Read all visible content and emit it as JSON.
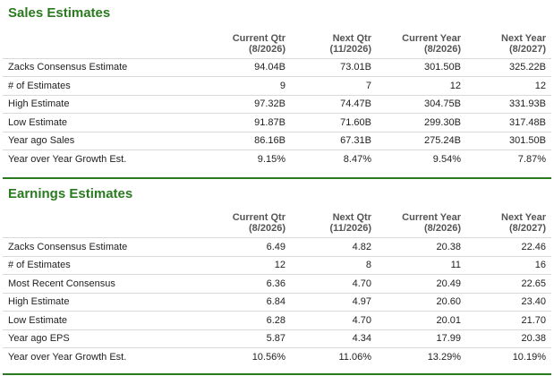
{
  "sales": {
    "title": "Sales Estimates",
    "columns": [
      {
        "line1": "Current Qtr",
        "line2": "(8/2026)"
      },
      {
        "line1": "Next Qtr",
        "line2": "(11/2026)"
      },
      {
        "line1": "Current Year",
        "line2": "(8/2026)"
      },
      {
        "line1": "Next Year",
        "line2": "(8/2027)"
      }
    ],
    "rows": [
      {
        "label": "Zacks Consensus Estimate",
        "v": [
          "94.04B",
          "73.01B",
          "301.50B",
          "325.22B"
        ]
      },
      {
        "label": "# of Estimates",
        "v": [
          "9",
          "7",
          "12",
          "12"
        ]
      },
      {
        "label": "High Estimate",
        "v": [
          "97.32B",
          "74.47B",
          "304.75B",
          "331.93B"
        ]
      },
      {
        "label": "Low Estimate",
        "v": [
          "91.87B",
          "71.60B",
          "299.30B",
          "317.48B"
        ]
      },
      {
        "label": "Year ago Sales",
        "v": [
          "86.16B",
          "67.31B",
          "275.24B",
          "301.50B"
        ]
      },
      {
        "label": "Year over Year Growth Est.",
        "v": [
          "9.15%",
          "8.47%",
          "9.54%",
          "7.87%"
        ]
      }
    ]
  },
  "earnings": {
    "title": "Earnings Estimates",
    "columns": [
      {
        "line1": "Current Qtr",
        "line2": "(8/2026)"
      },
      {
        "line1": "Next Qtr",
        "line2": "(11/2026)"
      },
      {
        "line1": "Current Year",
        "line2": "(8/2026)"
      },
      {
        "line1": "Next Year",
        "line2": "(8/2027)"
      }
    ],
    "rows": [
      {
        "label": "Zacks Consensus Estimate",
        "v": [
          "6.49",
          "4.82",
          "20.38",
          "22.46"
        ]
      },
      {
        "label": "# of Estimates",
        "v": [
          "12",
          "8",
          "11",
          "16"
        ]
      },
      {
        "label": "Most Recent Consensus",
        "v": [
          "6.36",
          "4.70",
          "20.49",
          "22.65"
        ]
      },
      {
        "label": "High Estimate",
        "v": [
          "6.84",
          "4.97",
          "20.60",
          "23.40"
        ]
      },
      {
        "label": "Low Estimate",
        "v": [
          "6.28",
          "4.70",
          "20.01",
          "21.70"
        ]
      },
      {
        "label": "Year ago EPS",
        "v": [
          "5.87",
          "4.34",
          "17.99",
          "20.38"
        ]
      },
      {
        "label": "Year over Year Growth Est.",
        "v": [
          "10.56%",
          "11.06%",
          "13.29%",
          "10.19%"
        ]
      }
    ]
  },
  "colors": {
    "accent": "#2a7a1f",
    "grid": "#d9d9d9"
  }
}
